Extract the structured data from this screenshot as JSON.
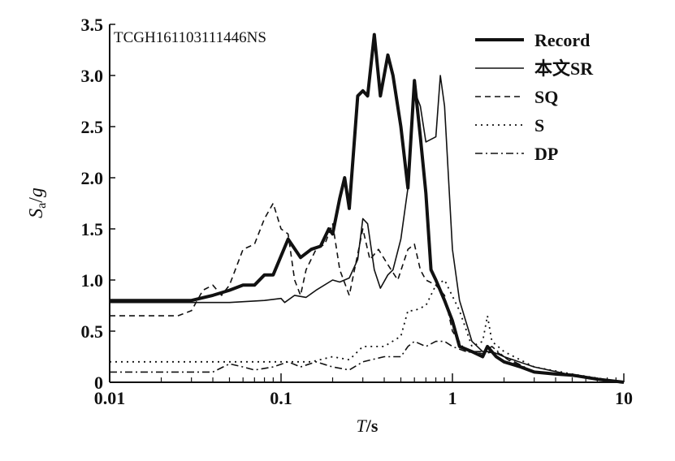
{
  "chart_data": {
    "type": "line",
    "title": "",
    "annotation": "TCGH161103111446NS",
    "xlabel": {
      "italic": "T",
      "rest": "/s"
    },
    "ylabel": {
      "italic": "S",
      "sub": "a",
      "rest": "/",
      "italic2": "g"
    },
    "xscale": "log",
    "xlim": [
      0.01,
      10
    ],
    "ylim": [
      0,
      3.5
    ],
    "xticks": [
      "0.01",
      "0.1",
      "1",
      "10"
    ],
    "yticks": [
      "0",
      "0.5",
      "1.0",
      "1.5",
      "2.0",
      "2.5",
      "3.0",
      "3.5"
    ],
    "legend_position": "top-right",
    "grid": false,
    "series": [
      {
        "name": "Record",
        "style": "thick",
        "x": [
          0.01,
          0.03,
          0.04,
          0.05,
          0.06,
          0.07,
          0.08,
          0.09,
          0.11,
          0.13,
          0.15,
          0.17,
          0.19,
          0.2,
          0.22,
          0.235,
          0.25,
          0.28,
          0.3,
          0.32,
          0.35,
          0.38,
          0.42,
          0.45,
          0.5,
          0.55,
          0.6,
          0.65,
          0.7,
          0.75,
          0.8,
          0.9,
          1.0,
          1.1,
          1.3,
          1.5,
          1.6,
          1.8,
          2,
          2.5,
          3,
          4,
          5,
          7,
          10
        ],
        "y": [
          0.8,
          0.8,
          0.85,
          0.9,
          0.95,
          0.95,
          1.05,
          1.05,
          1.4,
          1.22,
          1.3,
          1.33,
          1.5,
          1.45,
          1.8,
          2.0,
          1.7,
          2.8,
          2.85,
          2.8,
          3.4,
          2.8,
          3.2,
          3.0,
          2.5,
          1.9,
          2.95,
          2.4,
          1.85,
          1.1,
          1.0,
          0.8,
          0.6,
          0.35,
          0.3,
          0.25,
          0.35,
          0.25,
          0.2,
          0.15,
          0.1,
          0.08,
          0.07,
          0.03,
          0.0
        ]
      },
      {
        "name": "本文SR",
        "style": "solid",
        "x": [
          0.01,
          0.05,
          0.08,
          0.1,
          0.105,
          0.12,
          0.14,
          0.16,
          0.2,
          0.22,
          0.25,
          0.28,
          0.3,
          0.32,
          0.35,
          0.38,
          0.42,
          0.45,
          0.5,
          0.55,
          0.6,
          0.65,
          0.7,
          0.8,
          0.85,
          0.9,
          1.0,
          1.1,
          1.3,
          1.5,
          1.7,
          2,
          3,
          5,
          10
        ],
        "y": [
          0.78,
          0.78,
          0.8,
          0.82,
          0.78,
          0.85,
          0.83,
          0.9,
          1.0,
          0.98,
          1.02,
          1.2,
          1.6,
          1.55,
          1.1,
          0.92,
          1.05,
          1.1,
          1.4,
          1.9,
          2.85,
          2.7,
          2.35,
          2.4,
          3.0,
          2.7,
          1.3,
          0.8,
          0.4,
          0.3,
          0.3,
          0.25,
          0.15,
          0.07,
          0.0
        ]
      },
      {
        "name": "SQ",
        "style": "dashed",
        "x": [
          0.01,
          0.025,
          0.03,
          0.035,
          0.04,
          0.045,
          0.05,
          0.06,
          0.07,
          0.08,
          0.09,
          0.1,
          0.11,
          0.12,
          0.13,
          0.14,
          0.16,
          0.18,
          0.2,
          0.22,
          0.25,
          0.3,
          0.33,
          0.37,
          0.42,
          0.48,
          0.55,
          0.6,
          0.65,
          0.7,
          0.8,
          0.9,
          1.0,
          1.2,
          1.5,
          1.8,
          2.2,
          3,
          5,
          10
        ],
        "y": [
          0.65,
          0.65,
          0.7,
          0.9,
          0.95,
          0.85,
          0.95,
          1.3,
          1.35,
          1.6,
          1.75,
          1.5,
          1.45,
          1.0,
          0.85,
          1.1,
          1.3,
          1.35,
          1.55,
          1.1,
          0.85,
          1.5,
          1.2,
          1.3,
          1.15,
          1.0,
          1.3,
          1.35,
          1.1,
          1.0,
          0.95,
          0.85,
          0.5,
          0.3,
          0.28,
          0.3,
          0.2,
          0.1,
          0.06,
          0.0
        ]
      },
      {
        "name": "S",
        "style": "dotted",
        "x": [
          0.01,
          0.1,
          0.15,
          0.2,
          0.25,
          0.3,
          0.4,
          0.5,
          0.55,
          0.6,
          0.7,
          0.8,
          0.9,
          1.1,
          1.3,
          1.5,
          1.6,
          1.7,
          2,
          3,
          5,
          10
        ],
        "y": [
          0.2,
          0.2,
          0.2,
          0.25,
          0.22,
          0.35,
          0.35,
          0.45,
          0.7,
          0.7,
          0.75,
          0.95,
          1.0,
          0.7,
          0.35,
          0.4,
          0.65,
          0.4,
          0.3,
          0.15,
          0.08,
          0.0
        ]
      },
      {
        "name": "DP",
        "style": "dashdot",
        "x": [
          0.01,
          0.04,
          0.05,
          0.06,
          0.07,
          0.09,
          0.11,
          0.13,
          0.16,
          0.2,
          0.25,
          0.3,
          0.4,
          0.5,
          0.55,
          0.6,
          0.7,
          0.8,
          0.9,
          1,
          1.2,
          1.5,
          1.7,
          2,
          2.3,
          3,
          5,
          10
        ],
        "y": [
          0.1,
          0.1,
          0.18,
          0.15,
          0.12,
          0.15,
          0.2,
          0.15,
          0.2,
          0.15,
          0.12,
          0.2,
          0.25,
          0.25,
          0.35,
          0.4,
          0.35,
          0.4,
          0.4,
          0.35,
          0.3,
          0.3,
          0.35,
          0.25,
          0.2,
          0.1,
          0.07,
          0.0
        ]
      }
    ]
  }
}
